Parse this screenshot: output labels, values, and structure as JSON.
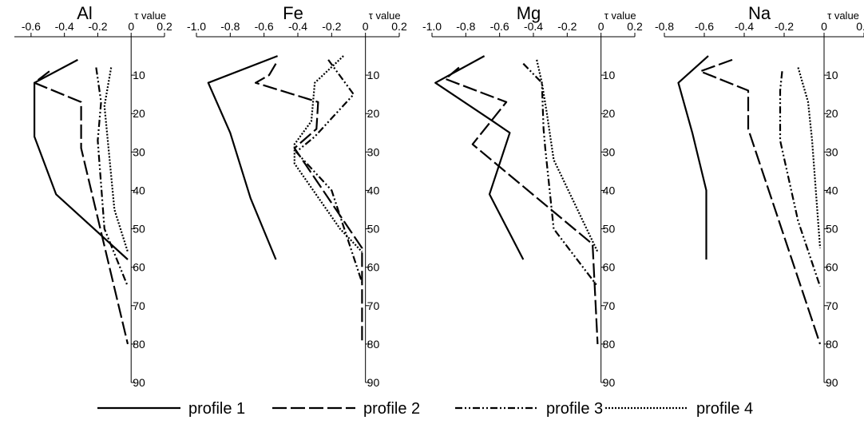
{
  "chart_data": {
    "type": "line",
    "orientation": "depth-profile",
    "legend_position": "bottom",
    "shared": {
      "y_ticks": [
        10,
        20,
        30,
        40,
        50,
        60,
        70,
        80,
        90
      ],
      "ylim": [
        0,
        90
      ],
      "y_inverted": true,
      "series_styles": [
        {
          "name": "profile 1",
          "dash": "solid",
          "color": "#000000"
        },
        {
          "name": "profile 2",
          "dash": "long-dash",
          "color": "#000000"
        },
        {
          "name": "profile 3",
          "dash": "dash-dot-dot",
          "color": "#000000"
        },
        {
          "name": "profile 4",
          "dash": "dotted",
          "color": "#000000"
        }
      ]
    },
    "panels": [
      {
        "title": "Al",
        "xlabel": "τ value",
        "xlim": [
          -0.7,
          0.2
        ],
        "x_ticks": [
          "-0.6",
          "-0.4",
          "-0.2",
          "0",
          "0.2"
        ],
        "x_tick_values": [
          -0.6,
          -0.4,
          -0.2,
          0,
          0.2
        ],
        "series": [
          {
            "name": "profile 1",
            "points": [
              [
                -0.32,
                6
              ],
              [
                -0.58,
                12
              ],
              [
                -0.58,
                26
              ],
              [
                -0.45,
                41
              ],
              [
                -0.02,
                58
              ]
            ]
          },
          {
            "name": "profile 2",
            "points": [
              [
                -0.49,
                9
              ],
              [
                -0.58,
                12
              ],
              [
                -0.3,
                17
              ],
              [
                -0.3,
                29
              ],
              [
                -0.02,
                80
              ]
            ]
          },
          {
            "name": "profile 3",
            "points": [
              [
                -0.21,
                8
              ],
              [
                -0.18,
                17
              ],
              [
                -0.2,
                27
              ],
              [
                -0.16,
                50
              ],
              [
                -0.02,
                65
              ]
            ]
          },
          {
            "name": "profile 4",
            "points": [
              [
                -0.12,
                8
              ],
              [
                -0.16,
                18
              ],
              [
                -0.1,
                45
              ],
              [
                -0.02,
                56
              ]
            ]
          }
        ]
      },
      {
        "title": "Fe",
        "xlabel": "τ value",
        "xlim": [
          -1.0,
          0.2
        ],
        "x_ticks": [
          "-1.0",
          "-0.8",
          "-0.6",
          "-0.4",
          "-0.2",
          "0",
          "0.2"
        ],
        "x_tick_values": [
          -1.0,
          -0.8,
          -0.6,
          -0.4,
          -0.2,
          0,
          0.2
        ],
        "series": [
          {
            "name": "profile 1",
            "points": [
              [
                -0.52,
                5
              ],
              [
                -0.93,
                12
              ],
              [
                -0.8,
                25
              ],
              [
                -0.68,
                42
              ],
              [
                -0.53,
                58
              ]
            ]
          },
          {
            "name": "profile 2",
            "points": [
              [
                -0.53,
                7
              ],
              [
                -0.57,
                10
              ],
              [
                -0.65,
                12
              ],
              [
                -0.28,
                17
              ],
              [
                -0.29,
                24
              ],
              [
                -0.42,
                29
              ],
              [
                -0.02,
                55
              ],
              [
                -0.02,
                80
              ]
            ]
          },
          {
            "name": "profile 3",
            "points": [
              [
                -0.22,
                6
              ],
              [
                -0.07,
                15
              ],
              [
                -0.3,
                26
              ],
              [
                -0.41,
                30
              ],
              [
                -0.2,
                40
              ],
              [
                -0.02,
                64
              ]
            ]
          },
          {
            "name": "profile 4",
            "points": [
              [
                -0.13,
                5
              ],
              [
                -0.3,
                12
              ],
              [
                -0.32,
                22
              ],
              [
                -0.42,
                28
              ],
              [
                -0.42,
                33
              ],
              [
                -0.15,
                50
              ],
              [
                -0.02,
                56
              ]
            ]
          }
        ]
      },
      {
        "title": "Mg",
        "xlabel": "τ value",
        "xlim": [
          -1.0,
          0.2
        ],
        "x_ticks": [
          "-1.0",
          "-0.8",
          "-0.6",
          "-0.4",
          "-0.2",
          "0",
          "0.2"
        ],
        "x_tick_values": [
          -1.0,
          -0.8,
          -0.6,
          -0.4,
          -0.2,
          0,
          0.2
        ],
        "series": [
          {
            "name": "profile 1",
            "points": [
              [
                -0.69,
                5
              ],
              [
                -0.98,
                12
              ],
              [
                -0.64,
                22
              ],
              [
                -0.54,
                25
              ],
              [
                -0.66,
                41
              ],
              [
                -0.46,
                58
              ]
            ]
          },
          {
            "name": "profile 2",
            "points": [
              [
                -0.84,
                8
              ],
              [
                -0.92,
                11
              ],
              [
                -0.56,
                17
              ],
              [
                -0.76,
                28
              ],
              [
                -0.05,
                54
              ],
              [
                -0.02,
                80
              ]
            ]
          },
          {
            "name": "profile 3",
            "points": [
              [
                -0.46,
                7
              ],
              [
                -0.35,
                12
              ],
              [
                -0.34,
                24
              ],
              [
                -0.33,
                29
              ],
              [
                -0.28,
                50
              ],
              [
                -0.02,
                65
              ]
            ]
          },
          {
            "name": "profile 4",
            "points": [
              [
                -0.38,
                6
              ],
              [
                -0.35,
                12
              ],
              [
                -0.32,
                20
              ],
              [
                -0.28,
                32
              ],
              [
                -0.02,
                56
              ]
            ]
          }
        ]
      },
      {
        "title": "Na",
        "xlabel": "τ value",
        "xlim": [
          -0.8,
          0.2
        ],
        "x_ticks": [
          "-0.8",
          "-0.6",
          "-0.4",
          "-0.2",
          "0",
          "0.2"
        ],
        "x_tick_values": [
          -0.8,
          -0.6,
          -0.4,
          -0.2,
          0,
          0.2
        ],
        "series": [
          {
            "name": "profile 1",
            "points": [
              [
                -0.58,
                5
              ],
              [
                -0.73,
                12
              ],
              [
                -0.66,
                25
              ],
              [
                -0.59,
                40
              ],
              [
                -0.59,
                58
              ]
            ]
          },
          {
            "name": "profile 2",
            "points": [
              [
                -0.46,
                6
              ],
              [
                -0.62,
                9
              ],
              [
                -0.38,
                14
              ],
              [
                -0.38,
                24
              ],
              [
                -0.02,
                80
              ]
            ]
          },
          {
            "name": "profile 3",
            "points": [
              [
                -0.21,
                9
              ],
              [
                -0.22,
                14
              ],
              [
                -0.22,
                27
              ],
              [
                -0.13,
                48
              ],
              [
                -0.02,
                65
              ]
            ]
          },
          {
            "name": "profile 4",
            "points": [
              [
                -0.13,
                8
              ],
              [
                -0.08,
                17
              ],
              [
                -0.06,
                27
              ],
              [
                -0.02,
                55
              ]
            ]
          }
        ]
      }
    ]
  }
}
